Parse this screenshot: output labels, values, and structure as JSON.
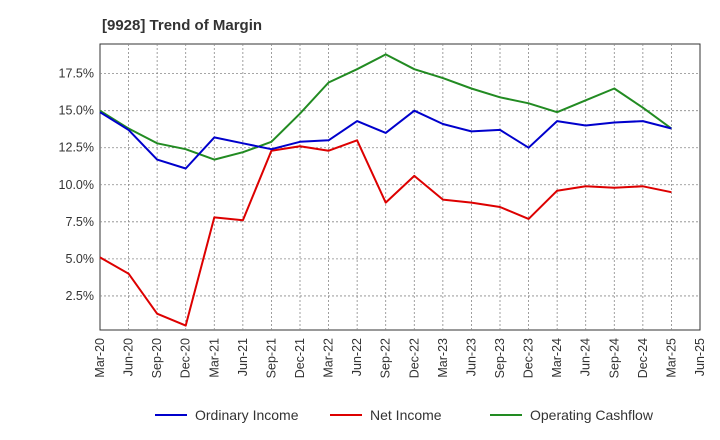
{
  "chart_data": {
    "type": "line",
    "title": "[9928]  Trend of Margin",
    "xlabel": "",
    "ylabel": "",
    "x": [
      "Mar-20",
      "Jun-20",
      "Sep-20",
      "Dec-20",
      "Mar-21",
      "Jun-21",
      "Sep-21",
      "Dec-21",
      "Mar-22",
      "Jun-22",
      "Sep-22",
      "Dec-22",
      "Mar-23",
      "Jun-23",
      "Sep-23",
      "Dec-23",
      "Mar-24",
      "Jun-24",
      "Sep-24",
      "Dec-24",
      "Mar-25",
      "Jun-25"
    ],
    "ylim": [
      0,
      17.5
    ],
    "yticks": [
      2.5,
      5.0,
      7.5,
      10.0,
      12.5,
      15.0,
      17.5
    ],
    "ytick_labels": [
      "2.5%",
      "5.0%",
      "7.5%",
      "10.0%",
      "12.5%",
      "15.0%",
      "17.5%"
    ],
    "grid": true,
    "legend_position": "bottom",
    "series": [
      {
        "name": "Ordinary Income",
        "color": "#0000cc",
        "values": [
          14.9,
          13.7,
          11.7,
          11.1,
          13.2,
          12.8,
          12.4,
          12.9,
          13.0,
          14.3,
          13.5,
          15.0,
          14.1,
          13.6,
          13.7,
          12.5,
          14.3,
          14.0,
          14.2,
          14.3,
          13.8,
          null
        ]
      },
      {
        "name": "Net Income",
        "color": "#dd0000",
        "values": [
          5.1,
          4.0,
          1.3,
          0.5,
          7.8,
          7.6,
          12.3,
          12.6,
          12.3,
          13.0,
          8.8,
          10.6,
          9.0,
          8.8,
          8.5,
          7.7,
          9.6,
          9.9,
          9.8,
          9.9,
          9.5,
          null
        ]
      },
      {
        "name": "Operating Cashflow",
        "color": "#228b22",
        "values": [
          15.0,
          13.8,
          12.8,
          12.4,
          11.7,
          12.2,
          12.9,
          14.8,
          16.9,
          17.8,
          18.8,
          17.8,
          17.2,
          16.5,
          15.9,
          15.5,
          14.9,
          15.7,
          16.5,
          15.2,
          13.8,
          null
        ]
      }
    ]
  }
}
